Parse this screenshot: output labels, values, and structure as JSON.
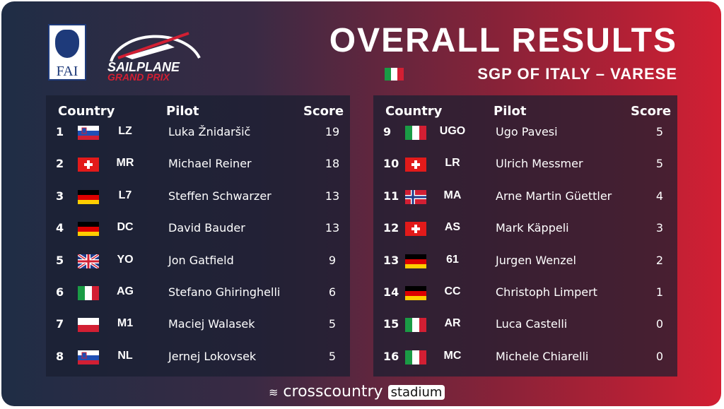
{
  "logos": {
    "fai": "FAI",
    "sailplane": "SAILPLANE",
    "grand_prix": "GRAND PRIX"
  },
  "header": {
    "title": "OVERALL RESULTS",
    "subtitle": "SGP OF ITALY – VARESE"
  },
  "tables": [
    {
      "columns": [
        "Country",
        "Pilot",
        "Score"
      ],
      "rows": [
        [
          1,
          "LZ",
          "Luka Žnidaršič",
          19
        ],
        [
          2,
          "MR",
          "Michael Reiner",
          18
        ],
        [
          3,
          "L7",
          "Steffen Schwarzer",
          13
        ],
        [
          4,
          "DC",
          "David Bauder",
          13
        ],
        [
          5,
          "YO",
          "Jon Gatfield",
          9
        ],
        [
          6,
          "AG",
          "Stefano Ghiringhelli",
          6
        ],
        [
          7,
          "M1",
          "Maciej Walasek",
          5
        ],
        [
          8,
          "NL",
          "Jernej Lokovsek",
          5
        ]
      ]
    },
    {
      "columns": [
        "Country",
        "Pilot",
        "Score"
      ],
      "rows": [
        [
          9,
          "UGO",
          "Ugo Pavesi",
          5
        ],
        [
          10,
          "LR",
          "Ulrich Messmer",
          5
        ],
        [
          11,
          "MA",
          "Arne Martin Güettler",
          4
        ],
        [
          12,
          "AS",
          "Mark Käppeli",
          3
        ],
        [
          13,
          "61",
          "Jurgen Wenzel",
          2
        ],
        [
          14,
          "CC",
          "Christoph Limpert",
          1
        ],
        [
          15,
          "AR",
          "Luca Castelli",
          0
        ],
        [
          16,
          "MC",
          "Michele Chiarelli",
          0
        ]
      ]
    }
  ],
  "footer": {
    "brand": "crosscountry",
    "badge": "stadium"
  }
}
